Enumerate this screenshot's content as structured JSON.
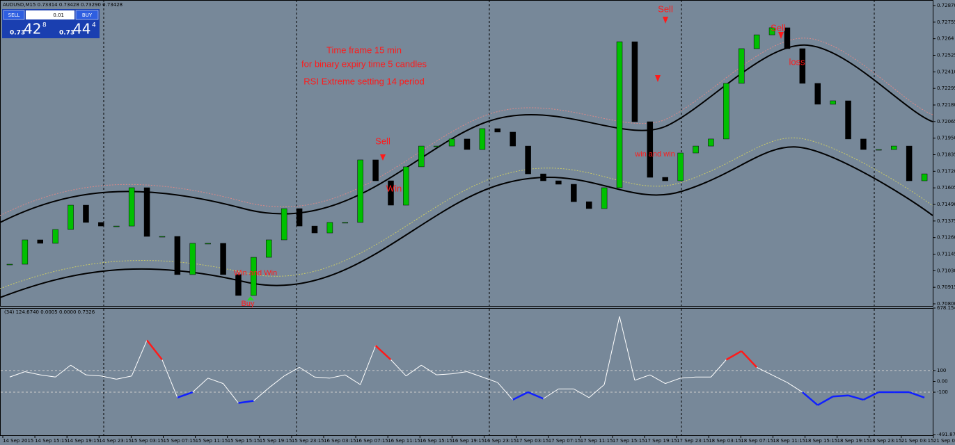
{
  "header": {
    "symbol_info": "AUDUSD,M15  0.73314 0.73428 0.73290 0.73428"
  },
  "trade_panel": {
    "sell": "SELL",
    "lot": "0.01",
    "buy": "BUY",
    "bid_prefix": "0.73",
    "bid_big": "42",
    "bid_sup": "8",
    "ask_prefix": "0.73",
    "ask_big": "44",
    "ask_sup": "4"
  },
  "annotations": [
    "Time frame 15 min",
    "for binary expiry time 5 candles",
    "RSI Extreme setting 14  period",
    "Sell",
    "Sell",
    "Sell",
    "Win",
    "Win and Win",
    "Buy",
    "win and win",
    "loss"
  ],
  "price_chart": {
    "ylim": [
      0.708,
      0.7287
    ],
    "yticks": [
      {
        "value": 0.7287,
        "label": "0.72870"
      },
      0.72755,
      0.7264,
      0.72525,
      {
        "value": 0.7241,
        "label": "0.72410"
      },
      0.72295,
      {
        "value": 0.7218,
        "label": "0.72180"
      },
      0.72065,
      {
        "value": 0.7195,
        "label": "0.71950"
      },
      0.71835,
      {
        "value": 0.7172,
        "label": "0.71720"
      },
      0.71605,
      {
        "value": 0.7149,
        "label": "0.71490"
      },
      0.71375,
      {
        "value": 0.7126,
        "label": "0.71260"
      },
      0.71145,
      {
        "value": 0.7103,
        "label": "0.71030"
      },
      0.70915,
      {
        "value": 0.708,
        "label": "0.70800"
      }
    ],
    "closes": [
      0.71075,
      0.71244,
      0.7122,
      0.71316,
      0.71485,
      0.71365,
      0.7134,
      0.7134,
      0.71606,
      0.71268,
      0.71268,
      0.71003,
      0.7122,
      0.7122,
      0.71003,
      0.70858,
      0.71123,
      0.71244,
      0.71461,
      0.7134,
      0.71292,
      0.71365,
      0.71365,
      0.71799,
      0.71654,
      0.71485,
      0.71751,
      0.71895,
      0.71895,
      0.71944,
      0.71871,
      0.72016,
      0.71992,
      0.71895,
      0.71702,
      0.71654,
      0.7163,
      0.71509,
      0.71461,
      0.71606,
      0.72619,
      0.72064,
      0.71678,
      0.71654,
      0.71847,
      0.71895,
      0.71944,
      0.7233,
      0.72571,
      0.72667,
      0.72716,
      0.72571,
      0.7233,
      0.72185,
      0.72209,
      0.71944,
      0.71871,
      0.71871,
      0.71895,
      0.71654,
      0.71702
    ]
  },
  "indicator": {
    "header": "(34) 124.6740 0.0005 0.0000 0.7326",
    "ylim": [
      -491.878,
      678.1544
    ],
    "yticks": [
      678.1544,
      100,
      {
        "value": 0,
        "label": "0.00"
      },
      -100,
      {
        "value": -491.878,
        "label": "-491.8780"
      }
    ],
    "levels": [
      100,
      -100
    ],
    "values": [
      40,
      90,
      60,
      40,
      150,
      60,
      50,
      20,
      50,
      380,
      200,
      -150,
      -100,
      30,
      -20,
      -200,
      -180,
      -60,
      50,
      130,
      40,
      30,
      60,
      -30,
      330,
      200,
      50,
      150,
      60,
      70,
      90,
      40,
      -10,
      -170,
      -100,
      -160,
      -70,
      -70,
      -150,
      -30,
      600,
      10,
      60,
      -20,
      30,
      40,
      40,
      200,
      280,
      130,
      60,
      -10,
      -100,
      -220,
      -140,
      -130,
      -170,
      -100,
      -100,
      -100,
      -150
    ]
  },
  "time_axis": {
    "labels": [
      "14 Sep 2015",
      "14 Sep 15:15",
      "14 Sep 19:15",
      "14 Sep 23:15",
      "15 Sep 03:15",
      "15 Sep 07:15",
      "15 Sep 11:15",
      "15 Sep 15:15",
      "15 Sep 19:15",
      "15 Sep 23:15",
      "16 Sep 03:15",
      "16 Sep 07:15",
      "16 Sep 11:15",
      "16 Sep 15:15",
      "16 Sep 19:15",
      "16 Sep 23:15",
      "17 Sep 03:15",
      "17 Sep 07:15",
      "17 Sep 11:15",
      "17 Sep 15:15",
      "17 Sep 19:15",
      "17 Sep 23:15",
      "18 Sep 03:15",
      "18 Sep 07:15",
      "18 Sep 11:15",
      "18 Sep 15:15",
      "18 Sep 19:15",
      "18 Sep 23:15",
      "21 Sep 03:15",
      "21 Sep 07:15",
      "21 Sep"
    ]
  }
}
